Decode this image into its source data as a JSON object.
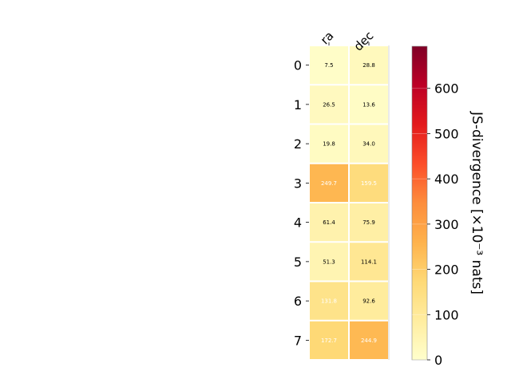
{
  "chart_data": {
    "type": "heatmap",
    "columns": [
      "ra",
      "dec"
    ],
    "rows": [
      "0",
      "1",
      "2",
      "3",
      "4",
      "5",
      "6",
      "7"
    ],
    "values": [
      [
        7.5,
        28.8
      ],
      [
        26.5,
        13.6
      ],
      [
        19.8,
        34.0
      ],
      [
        249.7,
        159.5
      ],
      [
        61.4,
        75.9
      ],
      [
        51.3,
        114.1
      ],
      [
        131.8,
        92.6
      ],
      [
        172.7,
        244.9
      ]
    ],
    "value_labels": [
      [
        "7.5",
        "28.8"
      ],
      [
        "26.5",
        "13.6"
      ],
      [
        "19.8",
        "34.0"
      ],
      [
        "249.7",
        "159.5"
      ],
      [
        "61.4",
        "75.9"
      ],
      [
        "51.3",
        "114.1"
      ],
      [
        "131.8",
        "92.6"
      ],
      [
        "172.7",
        "244.9"
      ]
    ],
    "colorbar": {
      "label": "JS-divergence [×10⁻³ nats]",
      "min": 0,
      "max": 693,
      "ticks": [
        0,
        100,
        200,
        300,
        400,
        500,
        600
      ],
      "tick_labels": [
        "0",
        "100",
        "200",
        "300",
        "400",
        "500",
        "600"
      ],
      "colormap": "YlOrRd"
    },
    "grid": false
  }
}
